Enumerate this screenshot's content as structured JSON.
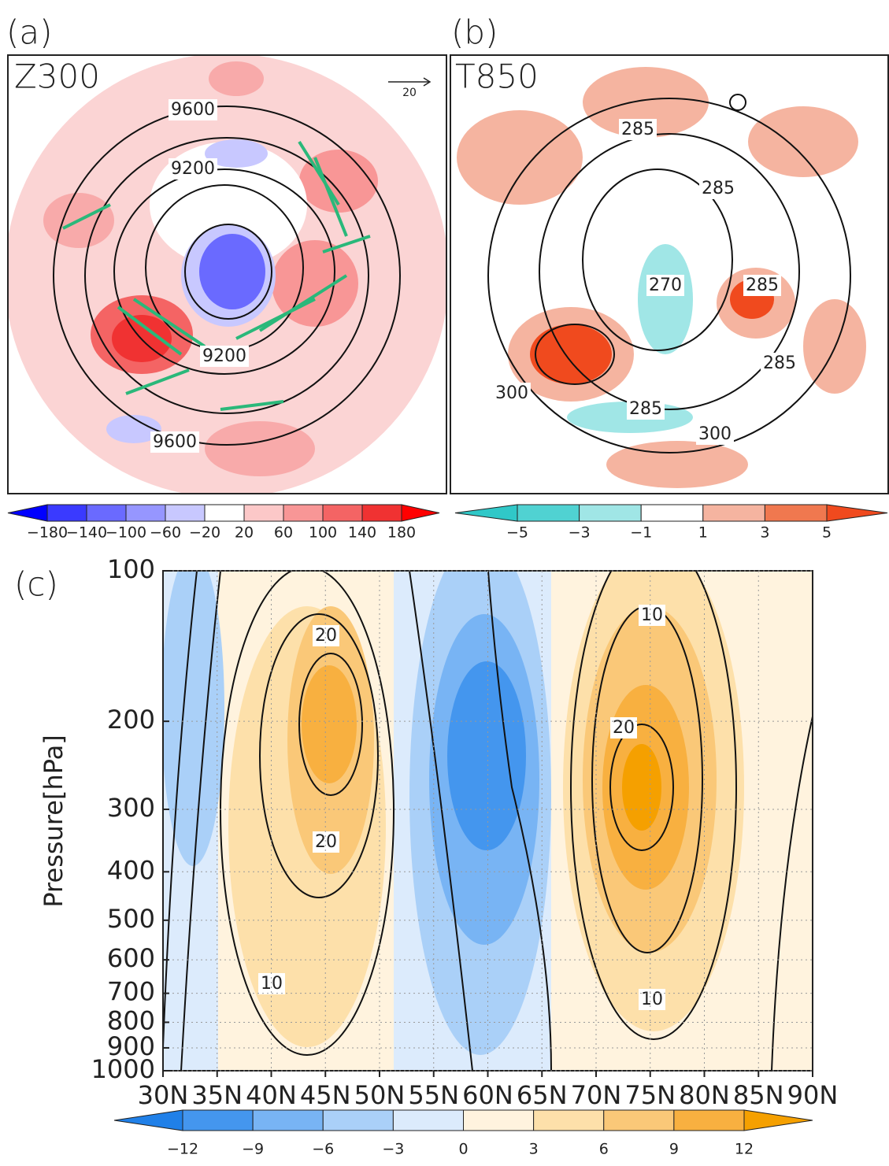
{
  "panel_a": {
    "label": "(a)",
    "title": "Z300",
    "vector_ref": "20",
    "contour_labels": [
      "9600",
      "9200",
      "9200",
      "9600"
    ],
    "colorbar": {
      "colors": [
        "#0000ff",
        "#3a3aff",
        "#6a6aff",
        "#9696ff",
        "#c8c8ff",
        "#ffffff",
        "#fcc8c8",
        "#f89696",
        "#f46464",
        "#f03232",
        "#ff0000"
      ],
      "ticks": [
        "−180",
        "−140",
        "−100",
        "−60",
        "−20",
        "20",
        "60",
        "100",
        "140",
        "180"
      ]
    }
  },
  "panel_b": {
    "label": "(b)",
    "title": "T850",
    "contour_labels": [
      "285",
      "285",
      "270",
      "285",
      "285",
      "300",
      "285",
      "300"
    ],
    "colorbar": {
      "colors": [
        "#30c8c8",
        "#50d2d2",
        "#a0e6e6",
        "#ffffff",
        "#f5b4a0",
        "#f0784f",
        "#f04a1e"
      ],
      "ticks": [
        "−5",
        "−3",
        "−1",
        "1",
        "3",
        "5"
      ]
    }
  },
  "panel_c": {
    "label": "(c)",
    "y_label": "Pressure[hPa]",
    "yticks": [
      "100",
      "200",
      "300",
      "400",
      "500",
      "600",
      "700",
      "800",
      "900",
      "1000"
    ],
    "xticks": [
      "30N",
      "35N",
      "40N",
      "45N",
      "50N",
      "55N",
      "60N",
      "65N",
      "70N",
      "75N",
      "80N",
      "85N",
      "90N"
    ],
    "contour_labels": [
      "20",
      "20",
      "10",
      "10",
      "20",
      "10"
    ],
    "colorbar": {
      "colors": [
        "#2080e8",
        "#4496ee",
        "#78b4f4",
        "#aad0f8",
        "#dcebfc",
        "#fff3de",
        "#fde0aa",
        "#fac878",
        "#f8b040",
        "#f5a000"
      ],
      "ticks": [
        "−12",
        "−9",
        "−6",
        "−3",
        "0",
        "3",
        "6",
        "9",
        "12"
      ]
    }
  }
}
